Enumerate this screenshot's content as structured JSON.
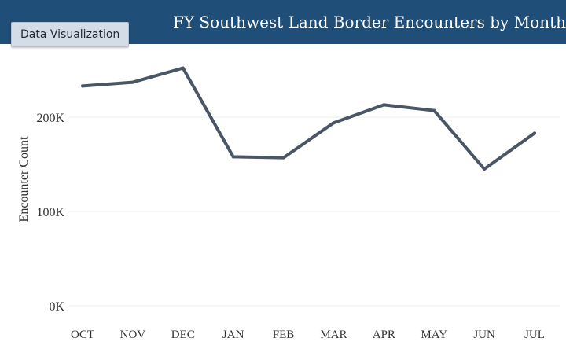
{
  "header": {
    "title": "FY Southwest Land Border Encounters by Month",
    "tag_label": "Data Visualization"
  },
  "colors": {
    "header_background": "#1f4e79",
    "line": "#4a5566",
    "gridline": "#eeeeee"
  },
  "chart_data": {
    "type": "line",
    "title": "FY Southwest Land Border Encounters by Month",
    "xlabel": "",
    "ylabel": "Encounter Count",
    "categories": [
      "OCT",
      "NOV",
      "DEC",
      "JAN",
      "FEB",
      "MAR",
      "APR",
      "MAY",
      "JUN",
      "JUL"
    ],
    "y_tick_labels": [
      "0K",
      "100K",
      "200K"
    ],
    "y_tick_values": [
      0,
      100000,
      200000
    ],
    "ylim": [
      0,
      250000
    ],
    "grid": true,
    "series": [
      {
        "values": [
          233000,
          237000,
          252000,
          158000,
          157000,
          194000,
          213000,
          207000,
          145000,
          183000
        ]
      }
    ]
  }
}
